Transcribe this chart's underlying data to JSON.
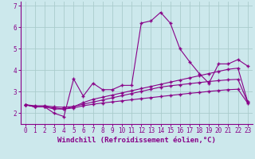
{
  "xlabel": "Windchill (Refroidissement éolien,°C)",
  "background_color": "#cce8ec",
  "grid_color": "#aacccc",
  "line_color": "#880088",
  "x": [
    0,
    1,
    2,
    3,
    4,
    5,
    6,
    7,
    8,
    9,
    10,
    11,
    12,
    13,
    14,
    15,
    16,
    17,
    18,
    19,
    20,
    21,
    22,
    23
  ],
  "y_line1": [
    2.4,
    2.3,
    2.3,
    2.0,
    1.85,
    3.6,
    2.8,
    3.4,
    3.1,
    3.1,
    3.3,
    3.3,
    6.2,
    6.3,
    6.7,
    6.2,
    5.0,
    4.4,
    3.85,
    3.4,
    4.3,
    4.3,
    4.5,
    4.2
  ],
  "y_line2": [
    2.4,
    2.3,
    2.3,
    2.2,
    2.2,
    2.3,
    2.5,
    2.65,
    2.75,
    2.85,
    2.95,
    3.05,
    3.15,
    3.25,
    3.35,
    3.45,
    3.55,
    3.65,
    3.75,
    3.85,
    3.95,
    4.05,
    4.1,
    2.55
  ],
  "y_line3": [
    2.4,
    2.35,
    2.35,
    2.3,
    2.28,
    2.32,
    2.42,
    2.52,
    2.62,
    2.72,
    2.82,
    2.92,
    3.02,
    3.12,
    3.22,
    3.28,
    3.33,
    3.38,
    3.43,
    3.48,
    3.52,
    3.56,
    3.58,
    2.52
  ],
  "y_line4": [
    2.4,
    2.3,
    2.3,
    2.25,
    2.2,
    2.25,
    2.35,
    2.42,
    2.48,
    2.53,
    2.58,
    2.63,
    2.68,
    2.73,
    2.78,
    2.83,
    2.88,
    2.93,
    2.97,
    3.02,
    3.06,
    3.1,
    3.12,
    2.48
  ],
  "ylim": [
    1.5,
    7.2
  ],
  "xlim": [
    -0.5,
    23.5
  ],
  "yticks": [
    2,
    3,
    4,
    5,
    6,
    7
  ],
  "xticks": [
    0,
    1,
    2,
    3,
    4,
    5,
    6,
    7,
    8,
    9,
    10,
    11,
    12,
    13,
    14,
    15,
    16,
    17,
    18,
    19,
    20,
    21,
    22,
    23
  ],
  "marker": "+",
  "markersize": 3,
  "linewidth": 0.8,
  "xlabel_fontsize": 6.5,
  "tick_fontsize": 5.5,
  "fig_width": 3.2,
  "fig_height": 2.0,
  "dpi": 100
}
